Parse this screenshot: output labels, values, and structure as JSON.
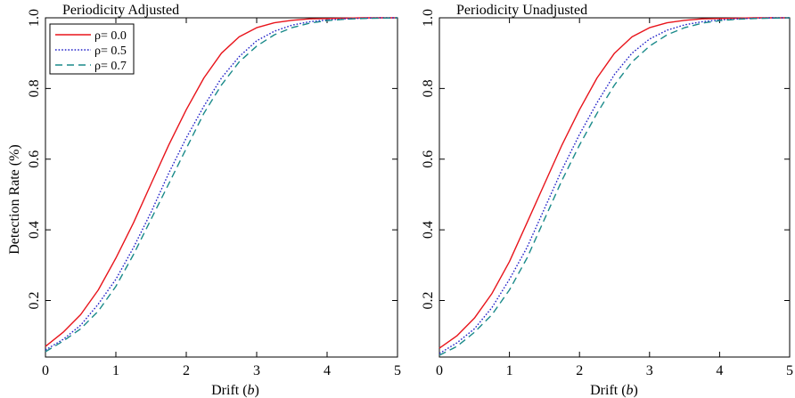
{
  "figure": {
    "ylabel": "Detection Rate (%)",
    "xlabel_main": "Drift (",
    "xlabel_var": "b",
    "xlabel_close": ")"
  },
  "chart_data": [
    {
      "type": "line",
      "title": "Periodicity Adjusted",
      "xlabel": "Drift (b)",
      "ylabel": "Detection Rate (%)",
      "xlim": [
        0,
        5
      ],
      "ylim": [
        0.04,
        1.0
      ],
      "xticks": [
        "0",
        "1",
        "2",
        "3",
        "4",
        "5"
      ],
      "yticks": [
        "0.2",
        "0.4",
        "0.6",
        "0.8",
        "1.0"
      ],
      "grid": false,
      "legend_position": "top-left",
      "x": [
        0,
        0.25,
        0.5,
        0.75,
        1.0,
        1.25,
        1.5,
        1.75,
        2.0,
        2.25,
        2.5,
        2.75,
        3.0,
        3.25,
        3.5,
        3.75,
        4.0,
        4.25,
        4.5,
        4.75,
        5.0
      ],
      "series": [
        {
          "name": "ρ= 0.0",
          "color": "#e8141b",
          "dash": "solid",
          "values": [
            0.07,
            0.11,
            0.16,
            0.23,
            0.32,
            0.42,
            0.53,
            0.64,
            0.74,
            0.83,
            0.9,
            0.946,
            0.972,
            0.986,
            0.993,
            0.997,
            0.998,
            0.999,
            1.0,
            1.0,
            1.0
          ]
        },
        {
          "name": "ρ= 0.5",
          "color": "#2222c8",
          "dash": "dotted",
          "values": [
            0.06,
            0.09,
            0.13,
            0.19,
            0.26,
            0.35,
            0.45,
            0.56,
            0.66,
            0.75,
            0.83,
            0.89,
            0.935,
            0.962,
            0.979,
            0.989,
            0.994,
            0.997,
            0.999,
            1.0,
            1.0
          ]
        },
        {
          "name": "ρ= 0.7",
          "color": "#1a8a8a",
          "dash": "dashed",
          "values": [
            0.055,
            0.085,
            0.12,
            0.17,
            0.24,
            0.33,
            0.43,
            0.53,
            0.63,
            0.73,
            0.81,
            0.875,
            0.92,
            0.952,
            0.972,
            0.985,
            0.992,
            0.996,
            0.998,
            0.999,
            1.0
          ]
        }
      ]
    },
    {
      "type": "line",
      "title": "Periodicity Unadjusted",
      "xlabel": "Drift (b)",
      "ylabel": "",
      "xlim": [
        0,
        5
      ],
      "ylim": [
        0.04,
        1.0
      ],
      "xticks": [
        "0",
        "1",
        "2",
        "3",
        "4",
        "5"
      ],
      "yticks": [
        "0.2",
        "0.4",
        "0.6",
        "0.8",
        "1.0"
      ],
      "grid": false,
      "x": [
        0,
        0.25,
        0.5,
        0.75,
        1.0,
        1.25,
        1.5,
        1.75,
        2.0,
        2.25,
        2.5,
        2.75,
        3.0,
        3.25,
        3.5,
        3.75,
        4.0,
        4.25,
        4.5,
        4.75,
        5.0
      ],
      "series": [
        {
          "name": "ρ= 0.0",
          "color": "#e8141b",
          "dash": "solid",
          "values": [
            0.065,
            0.1,
            0.15,
            0.22,
            0.31,
            0.42,
            0.53,
            0.64,
            0.74,
            0.83,
            0.9,
            0.946,
            0.972,
            0.986,
            0.993,
            0.997,
            0.998,
            0.999,
            1.0,
            1.0,
            1.0
          ]
        },
        {
          "name": "ρ= 0.5",
          "color": "#2222c8",
          "dash": "dotted",
          "values": [
            0.05,
            0.08,
            0.12,
            0.18,
            0.26,
            0.35,
            0.46,
            0.57,
            0.67,
            0.76,
            0.84,
            0.9,
            0.94,
            0.965,
            0.98,
            0.989,
            0.994,
            0.997,
            0.999,
            1.0,
            1.0
          ]
        },
        {
          "name": "ρ= 0.7",
          "color": "#1a8a8a",
          "dash": "dashed",
          "values": [
            0.045,
            0.07,
            0.11,
            0.16,
            0.23,
            0.32,
            0.43,
            0.54,
            0.64,
            0.73,
            0.81,
            0.875,
            0.92,
            0.952,
            0.972,
            0.985,
            0.992,
            0.996,
            0.998,
            0.999,
            1.0
          ]
        }
      ]
    }
  ]
}
